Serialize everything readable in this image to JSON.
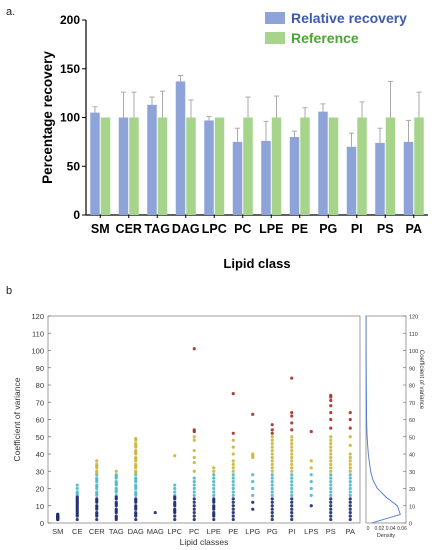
{
  "panels": {
    "a": "a.",
    "b": "b"
  },
  "chart_data": [
    {
      "type": "bar",
      "categories": [
        "SM",
        "CER",
        "TAG",
        "DAG",
        "LPC",
        "PC",
        "LPE",
        "PE",
        "PG",
        "PI",
        "PS",
        "PA"
      ],
      "series": [
        {
          "name": "Relative recovery",
          "color": "#8ea4d8",
          "values": [
            105,
            100,
            113,
            137,
            97,
            75,
            76,
            80,
            106,
            70,
            74,
            75
          ],
          "errors": [
            6,
            26,
            8,
            6,
            4,
            14,
            20,
            6,
            8,
            14,
            15,
            22
          ]
        },
        {
          "name": "Reference",
          "color": "#a6d48a",
          "values": [
            100,
            100,
            100,
            100,
            100,
            100,
            100,
            100,
            100,
            100,
            100,
            100
          ],
          "errors": [
            0,
            26,
            27,
            18,
            0,
            21,
            22,
            10,
            0,
            16,
            37,
            26
          ]
        }
      ],
      "title": "",
      "xlabel": "Lipid class",
      "ylabel": "Percentage recovery",
      "ylim": [
        0,
        200
      ],
      "yticks": [
        0,
        50,
        100,
        150,
        200
      ],
      "legend": "top-right",
      "grid": false
    },
    {
      "type": "scatter",
      "categories": [
        "SM",
        "CE",
        "CER",
        "TAG",
        "DAG",
        "MAG",
        "LPC",
        "PC",
        "LPE",
        "PE",
        "LPG",
        "PG",
        "PI",
        "LPS",
        "PS",
        "PA"
      ],
      "xlabel": "Lipid classes",
      "ylabel": "Coefficient of variance",
      "ylim": [
        0,
        120
      ],
      "yticks": [
        0,
        10,
        20,
        30,
        40,
        50,
        60,
        70,
        80,
        90,
        100,
        110,
        120
      ],
      "grid": false,
      "points": [
        [
          4,
          3,
          5,
          2,
          4,
          3,
          5,
          4,
          3,
          2
        ],
        [
          2,
          4,
          6,
          8,
          10,
          12,
          14,
          16,
          18,
          20,
          22,
          5,
          9,
          13,
          17,
          7,
          11,
          15
        ],
        [
          2,
          4,
          6,
          8,
          10,
          12,
          14,
          16,
          18,
          20,
          22,
          24,
          26,
          28,
          30,
          32,
          34,
          36,
          5,
          9,
          13,
          17,
          21,
          25,
          29,
          33
        ],
        [
          2,
          4,
          6,
          8,
          10,
          12,
          14,
          16,
          18,
          20,
          22,
          24,
          26,
          28,
          30,
          3,
          7,
          11,
          15,
          19,
          23,
          27
        ],
        [
          2,
          4,
          6,
          8,
          10,
          12,
          14,
          16,
          18,
          20,
          22,
          24,
          26,
          28,
          30,
          32,
          34,
          36,
          38,
          40,
          42,
          44,
          46,
          48,
          49,
          5,
          9,
          13,
          17,
          21,
          25,
          29,
          33,
          37,
          41,
          45
        ],
        [
          6
        ],
        [
          2,
          4,
          6,
          8,
          10,
          12,
          14,
          16,
          18,
          20,
          22,
          39,
          7,
          11,
          15
        ],
        [
          2,
          4,
          6,
          8,
          10,
          12,
          14,
          16,
          18,
          20,
          22,
          24,
          26,
          30,
          35,
          38,
          42,
          48,
          50,
          53,
          54,
          101
        ],
        [
          2,
          4,
          6,
          8,
          10,
          12,
          14,
          16,
          18,
          20,
          22,
          24,
          26,
          28,
          30,
          32,
          5,
          9,
          13
        ],
        [
          2,
          4,
          6,
          8,
          10,
          12,
          14,
          16,
          18,
          20,
          22,
          24,
          26,
          28,
          30,
          32,
          34,
          36,
          40,
          44,
          48,
          52,
          75
        ],
        [
          8,
          12,
          16,
          20,
          24,
          28,
          38,
          39,
          40,
          63
        ],
        [
          2,
          4,
          6,
          8,
          10,
          12,
          14,
          16,
          18,
          20,
          22,
          24,
          26,
          28,
          30,
          32,
          34,
          36,
          38,
          40,
          42,
          44,
          46,
          48,
          50,
          52,
          54,
          57
        ],
        [
          2,
          4,
          6,
          8,
          10,
          12,
          14,
          16,
          18,
          20,
          22,
          24,
          26,
          28,
          30,
          32,
          34,
          36,
          38,
          40,
          42,
          44,
          46,
          48,
          50,
          54,
          58,
          62,
          64,
          84
        ],
        [
          10,
          16,
          20,
          24,
          28,
          32,
          36,
          53
        ],
        [
          2,
          4,
          6,
          8,
          10,
          12,
          14,
          16,
          18,
          20,
          22,
          24,
          26,
          28,
          30,
          32,
          34,
          36,
          38,
          40,
          42,
          44,
          46,
          48,
          50,
          55,
          60,
          64,
          68,
          71,
          73,
          74
        ],
        [
          2,
          4,
          6,
          8,
          10,
          12,
          14,
          16,
          18,
          20,
          22,
          24,
          26,
          28,
          30,
          32,
          34,
          36,
          38,
          40,
          45,
          50,
          55,
          60,
          64
        ]
      ],
      "density_panel": {
        "xlabel": "Density",
        "xticks": [
          "0",
          "0.02",
          "0.04",
          "0.06"
        ],
        "ylabel": "Coefficient of variance",
        "yticks": [
          0,
          10,
          20,
          30,
          40,
          50,
          60,
          70,
          80,
          90,
          100,
          110,
          120
        ],
        "curve_x": [
          0,
          5,
          10,
          15,
          20,
          25,
          30,
          40,
          50,
          60,
          80,
          100,
          120
        ],
        "curve_y": [
          0.01,
          0.06,
          0.055,
          0.035,
          0.02,
          0.012,
          0.008,
          0.004,
          0.002,
          0.001,
          0.0005,
          0.0002,
          0.0001
        ],
        "xmax": 0.07
      },
      "colors": {
        "low": "#1b2a6b",
        "mid": "#4fb8c9",
        "high": "#c9b53a",
        "top": "#a0302a"
      }
    }
  ]
}
